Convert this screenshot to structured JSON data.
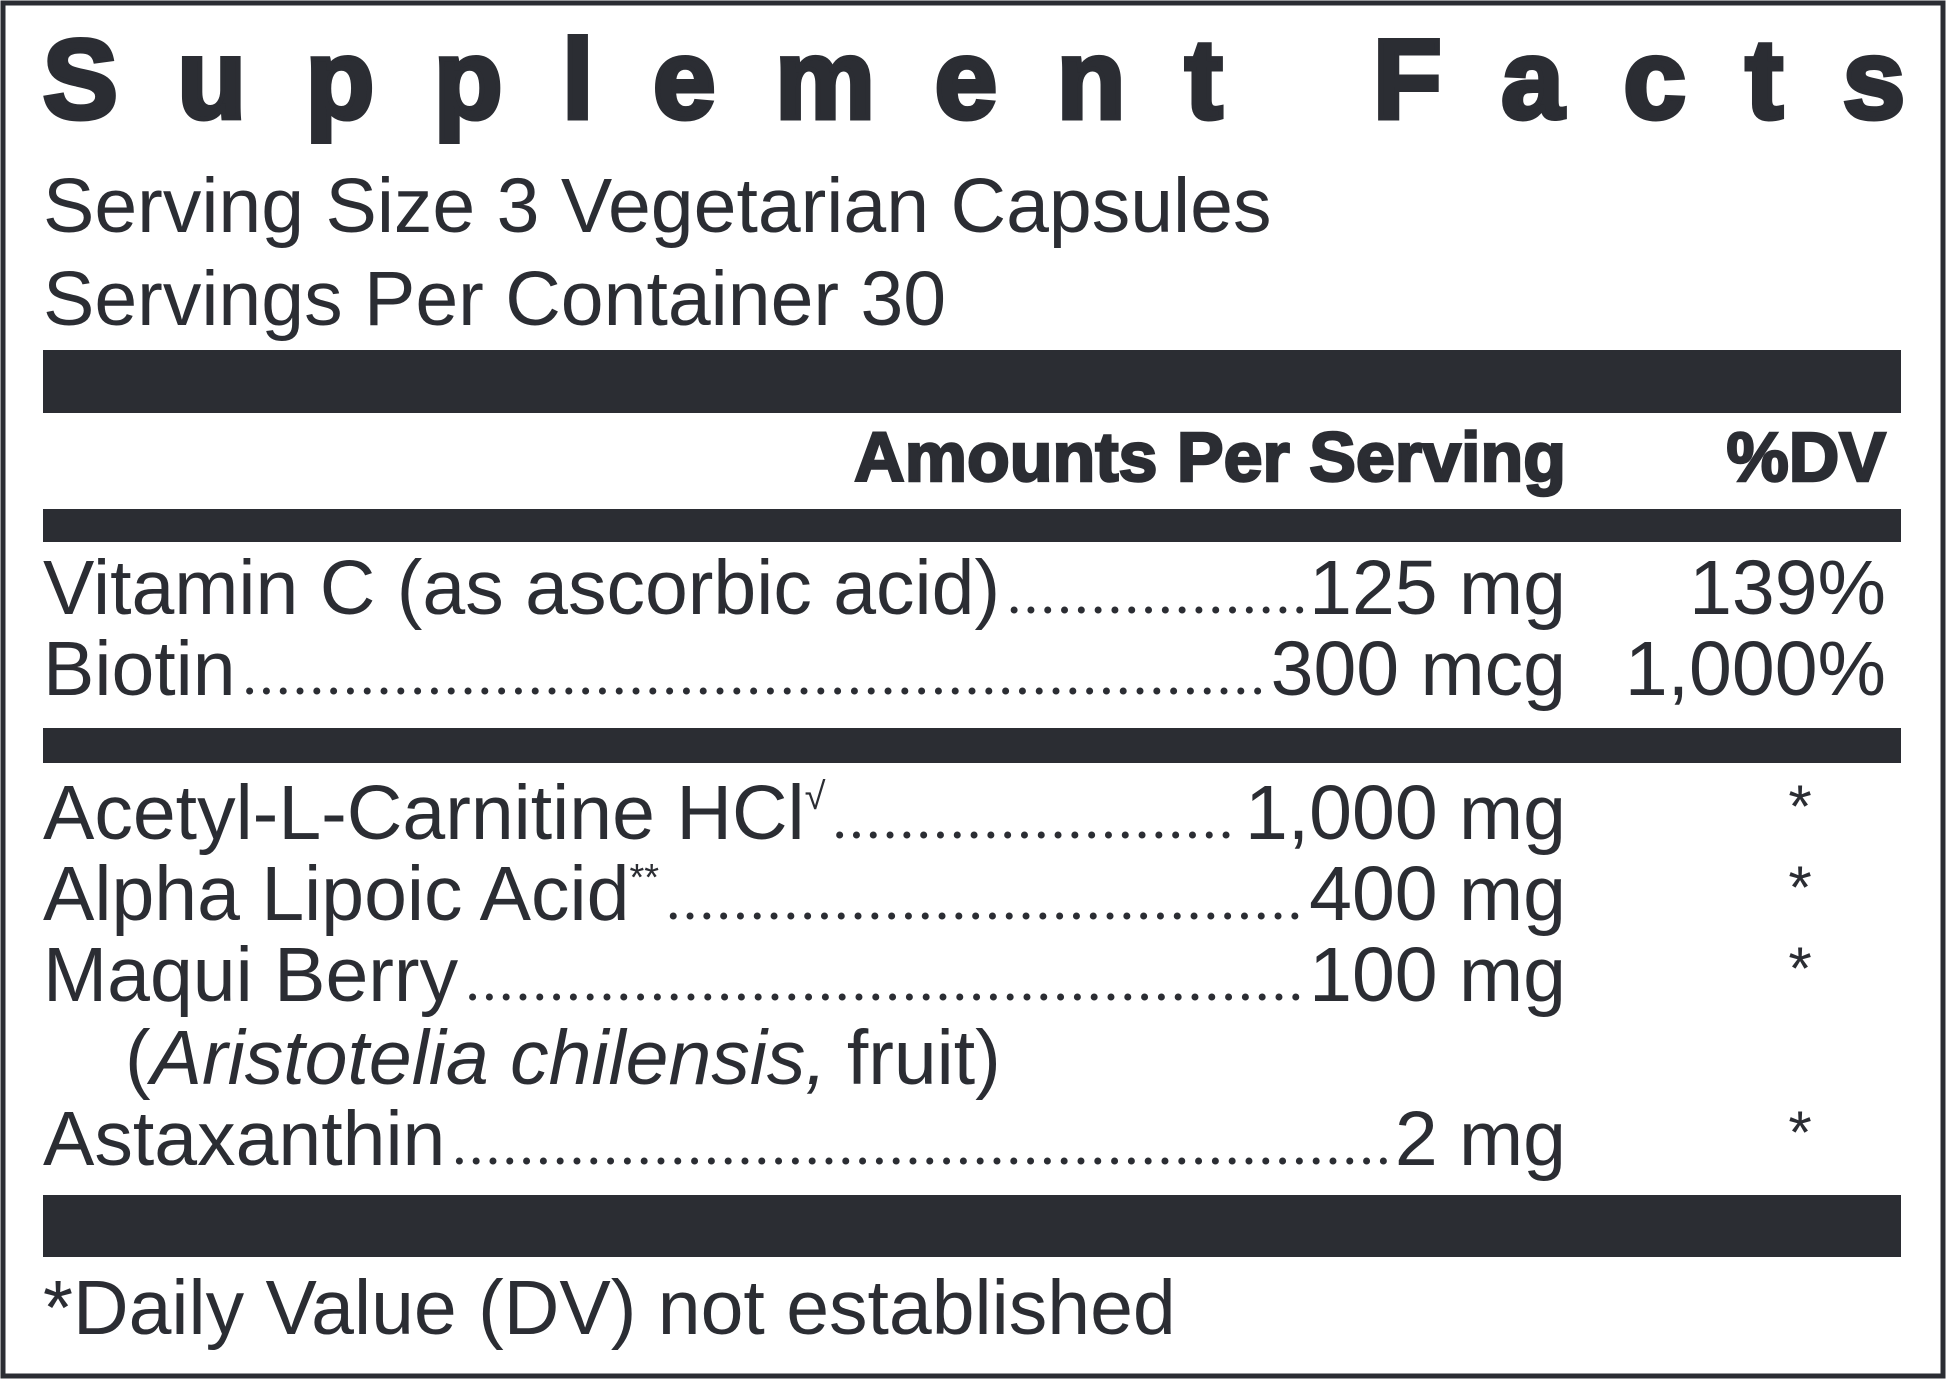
{
  "header": {
    "title": "Supplement Facts",
    "serving_size": "Serving Size 3 Vegetarian Capsules",
    "servings_per_container": "Servings Per Container 30"
  },
  "table": {
    "columns": [
      "Amounts Per Serving",
      "%DV"
    ],
    "groups": [
      [
        {
          "name": "Vitamin C (as ascorbic acid)",
          "amount": "125 mg",
          "dv": "139%"
        },
        {
          "name": "Biotin",
          "amount": "300 mcg",
          "dv": "1,000%"
        }
      ],
      [
        {
          "name": "Acetyl-L-Carnitine HCl",
          "superscript": "√",
          "amount": "1,000 mg",
          "dv": "*"
        },
        {
          "name": "Alpha Lipoic Acid",
          "superscript": "**",
          "amount": "400 mg",
          "dv": "*"
        },
        {
          "name": "Maqui Berry",
          "amount": "100 mg",
          "dv": "*",
          "source": {
            "open": "(",
            "species": "Aristotelia chilensis,",
            "part": "fruit)"
          }
        },
        {
          "name": "Astaxanthin",
          "amount": "2 mg",
          "dv": "*"
        }
      ]
    ]
  },
  "footnote": "*Daily Value (DV) not established"
}
